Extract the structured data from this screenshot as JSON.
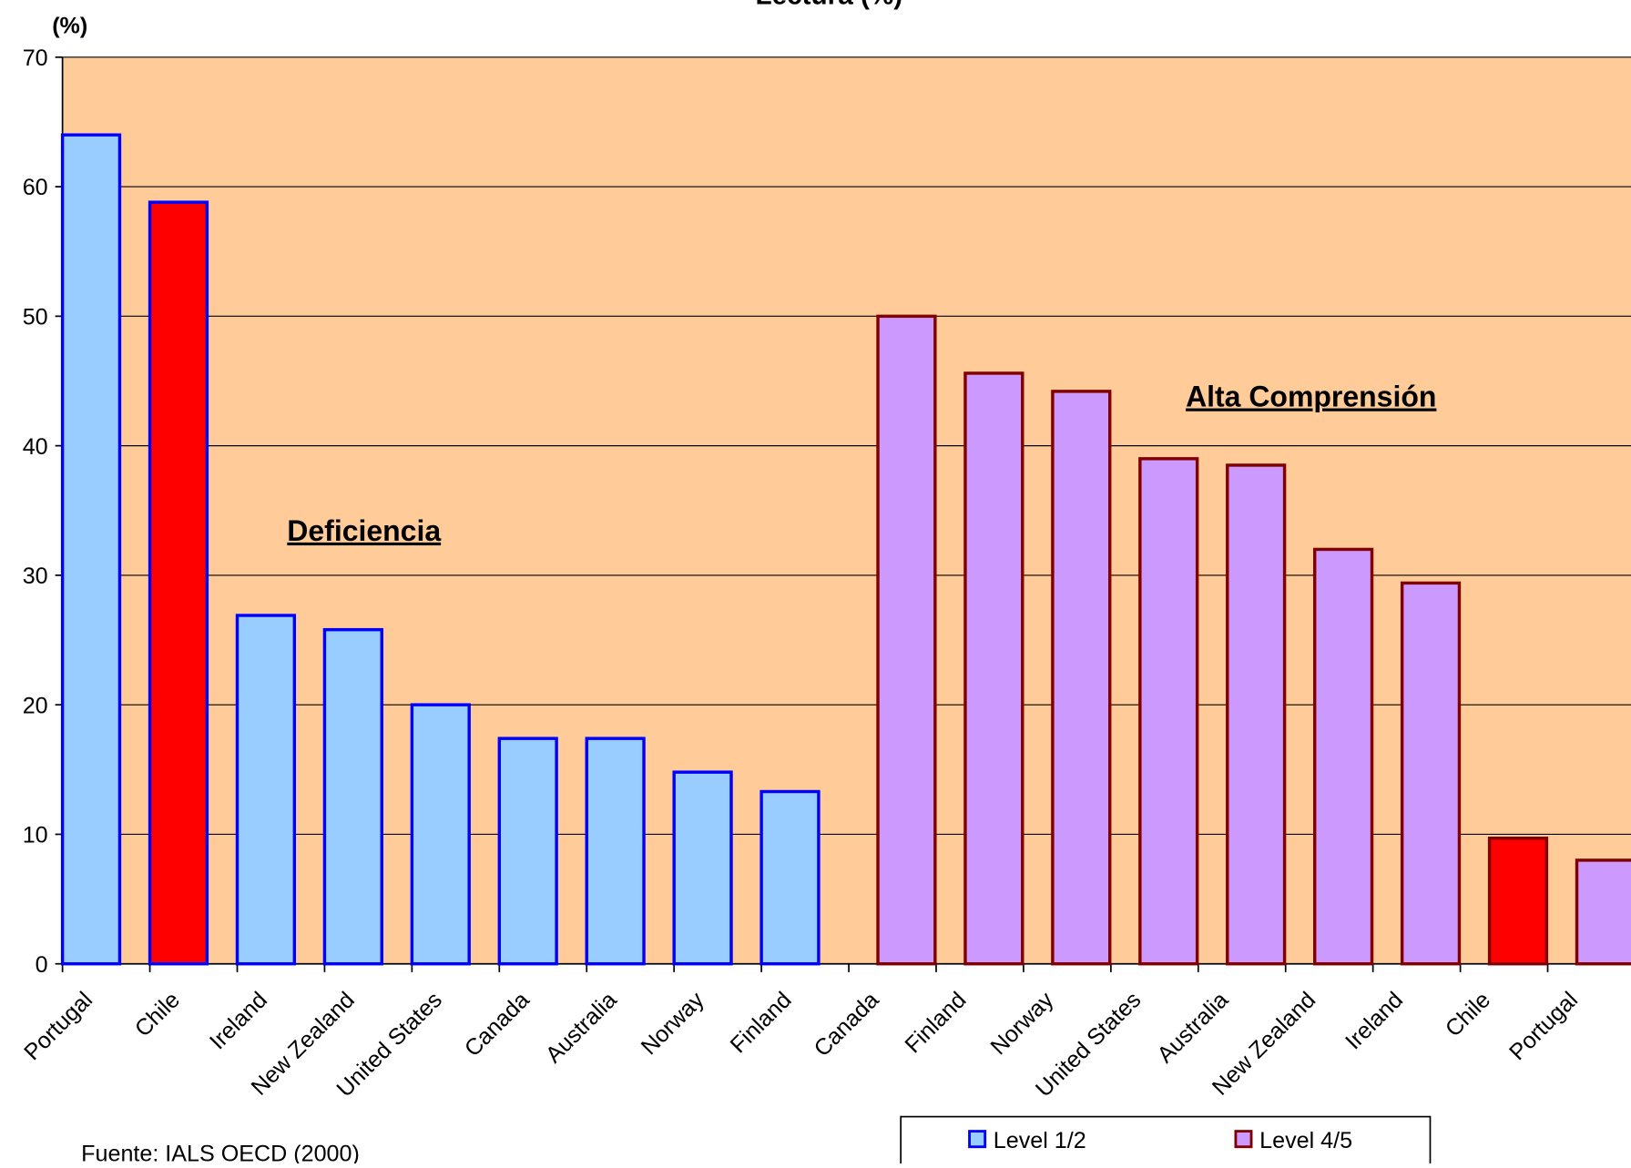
{
  "chart_data": {
    "type": "bar",
    "title": "Lectura (%)",
    "y_label": "(%)",
    "categories": [
      "Portugal",
      "Chile",
      "Ireland",
      "New Zealand",
      "United States",
      "Canada",
      "Australia",
      "Norway",
      "Finland",
      "Canada",
      "Finland",
      "Norway",
      "United States",
      "Australia",
      "New Zealand",
      "Ireland",
      "Chile",
      "Portugal"
    ],
    "series": [
      {
        "name": "Level 1/2",
        "color": "#99ccff",
        "edge_color": "#0000ff",
        "colors": [
          "#99ccff",
          "#ff0000",
          "#99ccff",
          "#99ccff",
          "#99ccff",
          "#99ccff",
          "#99ccff",
          "#99ccff",
          "#99ccff",
          "#99ccff",
          "#99ccff",
          "#99ccff",
          "#99ccff",
          "#99ccff",
          "#99ccff",
          "#99ccff",
          "#99ccff",
          "#99ccff"
        ],
        "values": [
          64,
          58.8,
          26.9,
          25.8,
          20,
          17.4,
          17.4,
          14.8,
          13.3,
          null,
          null,
          null,
          null,
          null,
          null,
          null,
          null,
          null
        ]
      },
      {
        "name": "Level 4/5",
        "color": "#cc99ff",
        "edge_color": "#800000",
        "colors": [
          "#cc99ff",
          "#cc99ff",
          "#cc99ff",
          "#cc99ff",
          "#cc99ff",
          "#cc99ff",
          "#cc99ff",
          "#cc99ff",
          "#cc99ff",
          "#cc99ff",
          "#cc99ff",
          "#cc99ff",
          "#cc99ff",
          "#cc99ff",
          "#cc99ff",
          "#cc99ff",
          "#ff0000",
          "#cc99ff"
        ],
        "values": [
          null,
          null,
          null,
          null,
          null,
          null,
          null,
          null,
          null,
          50,
          45.6,
          44.2,
          39,
          38.5,
          32,
          29.4,
          9.7,
          8
        ]
      }
    ],
    "ylim": [
      0,
      70
    ],
    "yticks": [
      0,
      10,
      20,
      30,
      40,
      50,
      60,
      70
    ],
    "grid": true,
    "plot_background": "#ffcc99",
    "legend": "bottom",
    "annotations": [
      "Deficiencia",
      "Alta Comprensión"
    ],
    "source": "Fuente: IALS OECD (2000)"
  }
}
